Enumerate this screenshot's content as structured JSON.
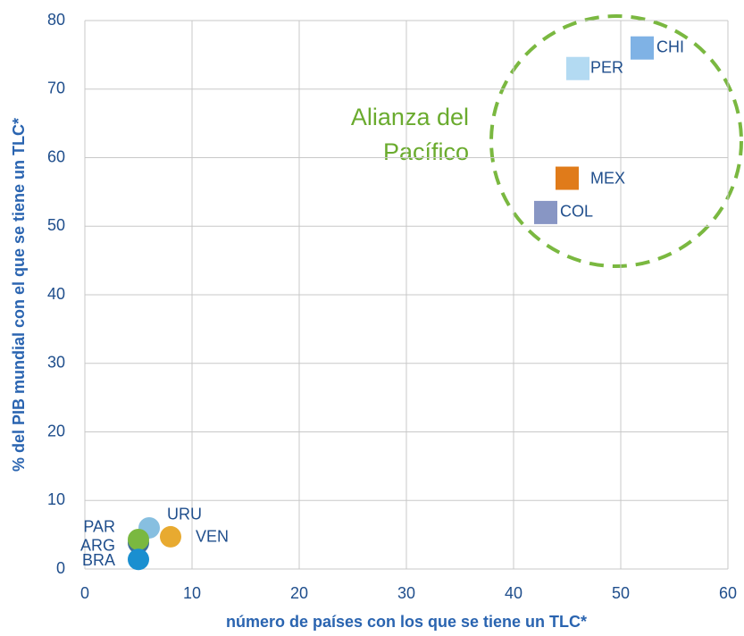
{
  "chart_data": {
    "type": "scatter",
    "x_label": "número de países con los que se tiene un TLC*",
    "y_label": "% del PIB mundial con el que se tiene un TLC*",
    "xlim": [
      0,
      60
    ],
    "xticks": [
      0,
      10,
      20,
      30,
      40,
      50,
      60
    ],
    "ylim": [
      0,
      80
    ],
    "yticks": [
      0,
      10,
      20,
      30,
      40,
      50,
      60,
      70,
      80
    ],
    "grid": true,
    "annotation": [
      "Alianza del",
      "Pacífico"
    ],
    "points": [
      {
        "name": "CHI",
        "color": "#7fb2e5",
        "marker": "square",
        "x": 52,
        "y": 76
      },
      {
        "name": "PER",
        "color": "#b3daf2",
        "marker": "square",
        "x": 46,
        "y": 73
      },
      {
        "name": "MEX",
        "color": "#e07b1a",
        "marker": "square",
        "x": 45,
        "y": 57
      },
      {
        "name": "COL",
        "color": "#8896c4",
        "marker": "square",
        "x": 43,
        "y": 52
      },
      {
        "name": "URU",
        "color": "#87bfe0",
        "marker": "circle",
        "x": 6,
        "y": 6
      },
      {
        "name": "VEN",
        "color": "#e8aa30",
        "marker": "circle",
        "x": 8,
        "y": 4.7
      },
      {
        "name": "ARG",
        "color": "#3d6e9c",
        "marker": "circle",
        "x": 5,
        "y": 3.8
      },
      {
        "name": "PAR",
        "color": "#7ab840",
        "marker": "circle",
        "x": 5,
        "y": 4.3
      },
      {
        "name": "BRA",
        "color": "#1a8fd0",
        "marker": "circle",
        "x": 5,
        "y": 1.4
      }
    ]
  }
}
